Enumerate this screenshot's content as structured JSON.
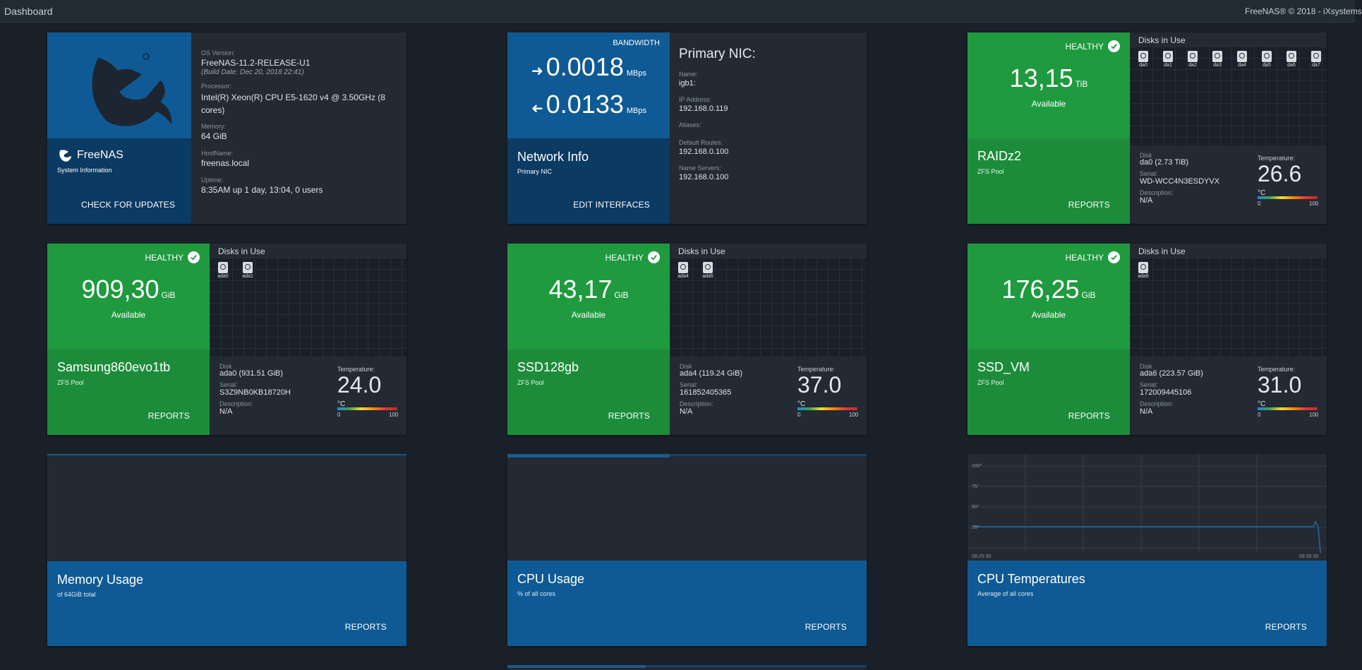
{
  "topbar": {
    "title": "Dashboard",
    "copyright": "FreeNAS® © 2018 - iXsystems"
  },
  "sysinfo": {
    "brand": "FreeNAS",
    "subtitle": "System Information",
    "button": "CHECK FOR UPDATES",
    "os_label": "OS Version:",
    "os_value": "FreeNAS-11.2-RELEASE-U1",
    "build": "(Build Date: Dec 20, 2018 22:41)",
    "proc_label": "Processor:",
    "proc_value": "Intel(R) Xeon(R) CPU E5-1620 v4 @ 3.50GHz (8 cores)",
    "mem_label": "Memory:",
    "mem_value": "64 GiB",
    "host_label": "HostName:",
    "host_value": "freenas.local",
    "up_label": "Uptime:",
    "up_value": "8:35AM up 1 day, 13:04, 0 users"
  },
  "network": {
    "bandwidth_label": "BANDWIDTH",
    "out_value": "0.0018",
    "in_value": "0.0133",
    "unit": "MBps",
    "title": "Network Info",
    "subtitle": "Primary NIC",
    "button": "EDIT INTERFACES",
    "nic_title": "Primary NIC:",
    "name_label": "Name:",
    "name_value": "igb1:",
    "ip_label": "IP Address:",
    "ip_value": "192.168.0.119",
    "alias_label": "Aliases:",
    "route_label": "Default Routes:",
    "route_value": "192.168.0.100",
    "ns_label": "Name Servers:",
    "ns_value": "192.168.0.100"
  },
  "common": {
    "healthy": "HEALTHY",
    "available": "Available",
    "zfs_pool": "ZFS Pool",
    "reports": "REPORTS",
    "disks_in_use": "Disks in Use",
    "disk_label": "Disk",
    "serial_label": "Serial:",
    "desc_label": "Description:",
    "temp_label": "Temperature:",
    "temp_unit": "°C",
    "t0": "0",
    "t100": "100",
    "na": "N/A"
  },
  "pools": {
    "raidz2": {
      "size": "13,15",
      "unit": "TiB",
      "name": "RAIDz2",
      "disk": "da0 (2.73 TiB)",
      "serial": "WD-WCC4N3ESDYVX",
      "temp": "26.6",
      "disks": [
        "da0",
        "da1",
        "da2",
        "da3",
        "da4",
        "da5",
        "da6",
        "da7"
      ]
    },
    "samsung": {
      "size": "909,30",
      "unit": "GiB",
      "name": "Samsung860evo1tb",
      "disk": "ada0 (931.51 GiB)",
      "serial": "S3Z9NB0KB18720H",
      "temp": "24.0",
      "disks": [
        "ada0",
        "ada1"
      ]
    },
    "ssd128": {
      "size": "43,17",
      "unit": "GiB",
      "name": "SSD128gb",
      "disk": "ada4 (119.24 GiB)",
      "serial": "161852405365",
      "temp": "37.0",
      "disks": [
        "ada4",
        "ada5"
      ]
    },
    "ssdvm": {
      "size": "176,25",
      "unit": "GiB",
      "name": "SSD_VM",
      "disk": "ada6 (223.57 GiB)",
      "serial": "172009445106",
      "temp": "31.0",
      "disks": [
        "ada6"
      ]
    }
  },
  "memory": {
    "title": "Memory Usage",
    "subtitle": "of 64GiB total"
  },
  "cpu": {
    "title": "CPU Usage",
    "subtitle": "% of all cores"
  },
  "cputemp": {
    "title": "CPU Temperatures",
    "subtitle": "Average of all cores",
    "yticks": [
      "100°",
      "75°",
      "50°",
      "25°"
    ],
    "xstart": "08:25:30",
    "xend": "08:35:30"
  }
}
